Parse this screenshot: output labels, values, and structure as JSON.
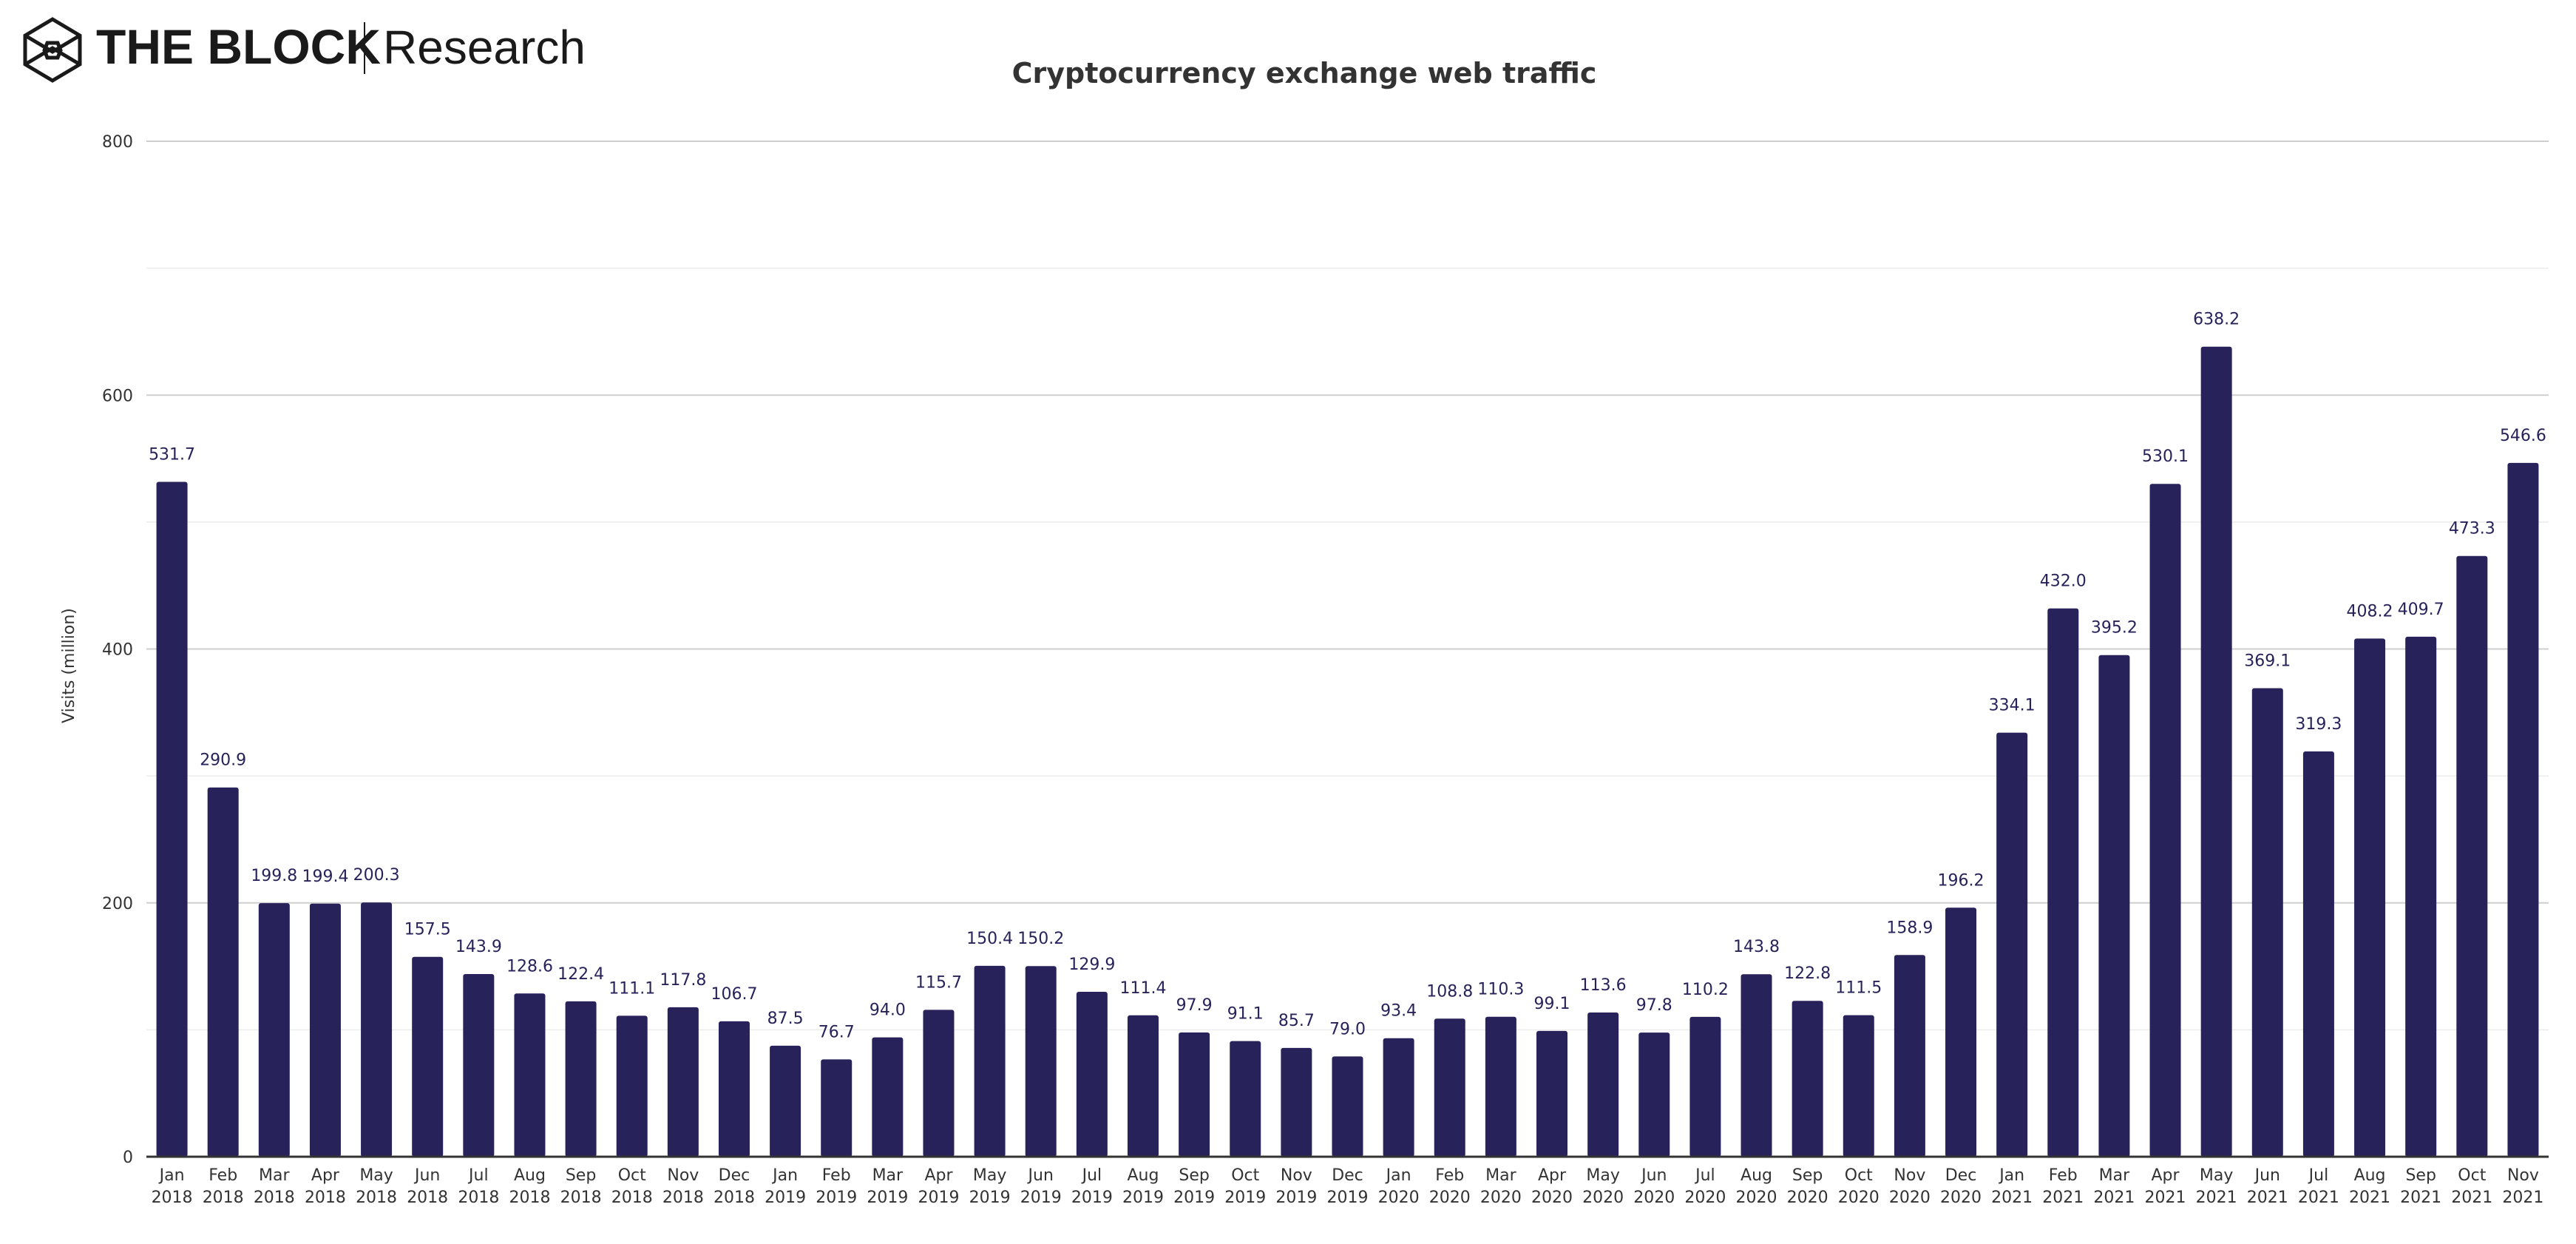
{
  "brand": {
    "name": "THE BLOCK",
    "sub": "Research"
  },
  "chart_data": {
    "type": "bar",
    "title": "Cryptocurrency exchange web traffic",
    "xlabel": "",
    "ylabel": "Visits (million)",
    "ylim": [
      0,
      800
    ],
    "yticks": [
      0,
      200,
      400,
      600,
      800
    ],
    "grid": true,
    "bar_color": "#27235a",
    "categories": [
      "Jan 2018",
      "Feb 2018",
      "Mar 2018",
      "Apr 2018",
      "May 2018",
      "Jun 2018",
      "Jul 2018",
      "Aug 2018",
      "Sep 2018",
      "Oct 2018",
      "Nov 2018",
      "Dec 2018",
      "Jan 2019",
      "Feb 2019",
      "Mar 2019",
      "Apr 2019",
      "May 2019",
      "Jun 2019",
      "Jul 2019",
      "Aug 2019",
      "Sep 2019",
      "Oct 2019",
      "Nov 2019",
      "Dec 2019",
      "Jan 2020",
      "Feb 2020",
      "Mar 2020",
      "Apr 2020",
      "May 2020",
      "Jun 2020",
      "Jul 2020",
      "Aug 2020",
      "Sep 2020",
      "Oct 2020",
      "Nov 2020",
      "Dec 2020",
      "Jan 2021",
      "Feb 2021",
      "Mar 2021",
      "Apr 2021",
      "May 2021",
      "Jun 2021",
      "Jul 2021",
      "Aug 2021",
      "Sep 2021",
      "Oct 2021",
      "Nov 2021"
    ],
    "values": [
      531.7,
      290.9,
      199.8,
      199.4,
      200.3,
      157.5,
      143.9,
      128.6,
      122.4,
      111.1,
      117.8,
      106.7,
      87.5,
      76.7,
      94.0,
      115.7,
      150.4,
      150.2,
      129.9,
      111.4,
      97.9,
      91.1,
      85.7,
      79.0,
      93.4,
      108.8,
      110.3,
      99.1,
      113.6,
      97.8,
      110.2,
      143.8,
      122.8,
      111.5,
      158.9,
      196.2,
      334.1,
      432.0,
      395.2,
      530.1,
      638.2,
      369.1,
      319.3,
      408.2,
      409.7,
      473.3,
      546.6
    ]
  }
}
